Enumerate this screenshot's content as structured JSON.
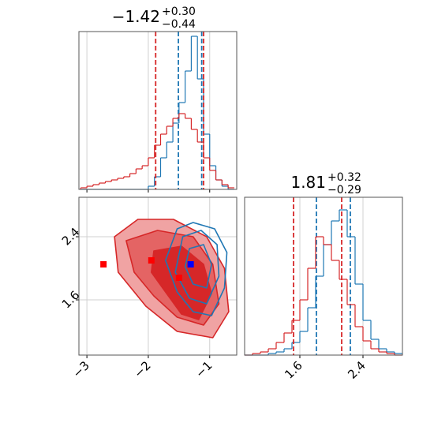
{
  "chart_data": [
    {
      "type": "histogram",
      "title": "−1.42",
      "title_sup": "+0.30",
      "title_sub": "−0.44",
      "xlim": [
        -3.13,
        -0.56
      ],
      "xticks": [
        -3,
        -2,
        -1
      ],
      "ylim": [
        0,
        100
      ],
      "grid": true,
      "bins": [
        -3.1,
        -3.0,
        -2.9,
        -2.8,
        -2.7,
        -2.6,
        -2.5,
        -2.4,
        -2.3,
        -2.2,
        -2.1,
        -2.0,
        -1.9,
        -1.8,
        -1.7,
        -1.6,
        -1.5,
        -1.4,
        -1.3,
        -1.2,
        -1.1,
        -1.0,
        -0.9,
        -0.8,
        -0.7,
        -0.6
      ],
      "series": [
        {
          "color": "#1f77b4",
          "values": [
            0,
            0,
            0,
            0,
            0,
            0,
            0,
            0,
            0,
            0,
            0,
            2,
            8,
            20,
            30,
            42,
            55,
            75,
            97,
            70,
            35,
            15,
            6,
            2,
            0
          ],
          "quantiles": [
            -1.51,
            -1.13
          ]
        },
        {
          "color": "#d62728",
          "values": [
            1,
            2,
            3,
            4,
            5,
            6,
            7,
            8,
            10,
            13,
            15,
            20,
            28,
            35,
            40,
            45,
            48,
            45,
            38,
            30,
            20,
            12,
            6,
            3,
            1
          ],
          "quantiles": [
            -1.88,
            -1.1
          ]
        }
      ]
    },
    {
      "type": "contour",
      "xlim": [
        -3.13,
        -0.56
      ],
      "xticks": [
        {
          "value": -3,
          "label": "−3"
        },
        {
          "value": -2,
          "label": "−2"
        },
        {
          "value": -1,
          "label": "−1"
        }
      ],
      "ylim": [
        0.9,
        2.9
      ],
      "yticks": [
        1.6,
        2.4
      ],
      "grid": true,
      "filled_levels": [
        {
          "color": "#f0a3a3",
          "x": [
            -2.55,
            -2.17,
            -1.59,
            -1.05,
            -0.76,
            -0.69,
            -0.95,
            -1.53,
            -2.04,
            -2.49
          ],
          "y": [
            2.4,
            2.62,
            2.62,
            2.4,
            2.0,
            1.45,
            1.12,
            1.2,
            1.52,
            1.95
          ]
        },
        {
          "color": "#e46464",
          "x": [
            -2.36,
            -1.85,
            -1.27,
            -0.95,
            -0.85,
            -1.1,
            -1.53,
            -1.91,
            -2.23
          ],
          "y": [
            2.35,
            2.48,
            2.4,
            2.05,
            1.55,
            1.28,
            1.38,
            1.65,
            1.95
          ]
        },
        {
          "color": "#d62728",
          "x": [
            -1.91,
            -1.46,
            -1.1,
            -0.97,
            -1.18,
            -1.46,
            -1.72,
            -1.95
          ],
          "y": [
            2.22,
            2.28,
            2.05,
            1.68,
            1.35,
            1.42,
            1.7,
            1.95
          ]
        }
      ],
      "line_levels": [
        {
          "color": "#1f77b4",
          "x": [
            -1.53,
            -1.27,
            -0.92,
            -0.72,
            -0.76,
            -0.97,
            -1.27,
            -1.53,
            -1.72
          ],
          "y": [
            2.5,
            2.58,
            2.5,
            2.2,
            1.75,
            1.4,
            1.45,
            1.7,
            2.1
          ]
        },
        {
          "color": "#1f77b4",
          "x": [
            -1.44,
            -1.14,
            -0.88,
            -0.85,
            -1.05,
            -1.33,
            -1.56
          ],
          "y": [
            2.4,
            2.48,
            2.3,
            1.9,
            1.55,
            1.62,
            1.95
          ]
        },
        {
          "color": "#1f77b4",
          "x": [
            -1.33,
            -1.1,
            -0.97,
            -1.05,
            -1.27,
            -1.4
          ],
          "y": [
            2.25,
            2.3,
            2.05,
            1.75,
            1.8,
            2.02
          ]
        }
      ],
      "markers": [
        {
          "color": "#ff0000",
          "x": [
            -2.73,
            -1.95,
            -1.5
          ],
          "y": [
            2.05,
            2.1,
            1.88
          ]
        },
        {
          "color": "#0000ff",
          "x": [
            -1.31
          ],
          "y": [
            2.05
          ]
        }
      ]
    },
    {
      "type": "histogram",
      "title": "1.81",
      "title_sup": "+0.32",
      "title_sub": "−0.29",
      "xlim": [
        0.9,
        2.9
      ],
      "xticks": [
        1.6,
        2.4
      ],
      "ylim": [
        0,
        100
      ],
      "grid": true,
      "bins": [
        0.9,
        1.0,
        1.1,
        1.2,
        1.3,
        1.4,
        1.5,
        1.6,
        1.7,
        1.8,
        1.9,
        2.0,
        2.1,
        2.2,
        2.3,
        2.4,
        2.5,
        2.6,
        2.7,
        2.8,
        2.9
      ],
      "series": [
        {
          "color": "#1f77b4",
          "values": [
            0,
            0,
            0,
            1,
            2,
            4,
            8,
            15,
            30,
            50,
            70,
            85,
            92,
            75,
            45,
            22,
            10,
            4,
            2,
            1
          ],
          "quantiles": [
            1.81,
            2.24
          ]
        },
        {
          "color": "#d62728",
          "values": [
            0,
            1,
            2,
            4,
            8,
            14,
            22,
            35,
            55,
            75,
            70,
            60,
            48,
            32,
            18,
            9,
            4,
            2,
            1,
            0
          ],
          "quantiles": [
            1.52,
            2.13
          ]
        }
      ]
    }
  ]
}
